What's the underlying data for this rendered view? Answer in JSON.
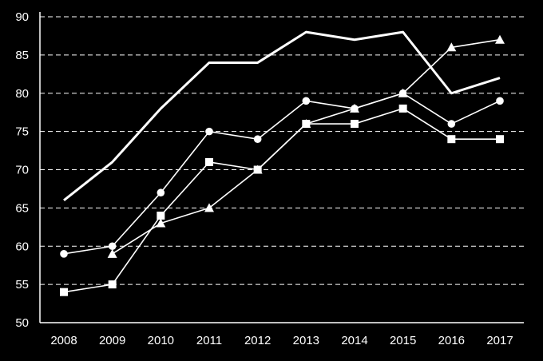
{
  "chart_data": {
    "type": "line",
    "categories": [
      "2008",
      "2009",
      "2010",
      "2011",
      "2012",
      "2013",
      "2014",
      "2015",
      "2016",
      "2017"
    ],
    "ylim": [
      50,
      90
    ],
    "yticks": [
      50,
      55,
      60,
      65,
      70,
      75,
      80,
      85,
      90
    ],
    "grid": true,
    "background": "#000000",
    "line_color": "#ffffff",
    "series": [
      {
        "marker": "none",
        "line": "thick",
        "values": [
          66,
          71,
          78,
          84,
          84,
          88,
          87,
          88,
          80,
          82
        ]
      },
      {
        "marker": "circle",
        "line": "thin",
        "values": [
          59,
          60,
          67,
          75,
          74,
          79,
          78,
          80,
          76,
          79
        ]
      },
      {
        "marker": "triangle",
        "line": "thin",
        "values": [
          null,
          59,
          63,
          65,
          70,
          76,
          78,
          80,
          86,
          87
        ]
      },
      {
        "marker": "square",
        "line": "thin",
        "values": [
          54,
          55,
          64,
          71,
          70,
          76,
          76,
          78,
          74,
          74
        ]
      }
    ]
  }
}
